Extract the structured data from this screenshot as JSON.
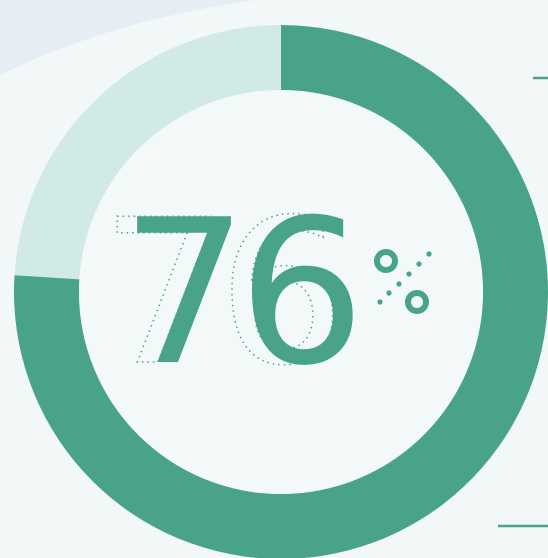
{
  "colors": {
    "background": "#f2f7f7",
    "background_wave": "#e6edf3",
    "accent": "#48a38a",
    "track": "#d2eae6",
    "inner": "#f3f8f8"
  },
  "chart_data": {
    "type": "pie",
    "subtype": "donut",
    "value": 76,
    "max": 100,
    "value_label": "76",
    "unit": "%",
    "grid": false,
    "legend": "none"
  }
}
